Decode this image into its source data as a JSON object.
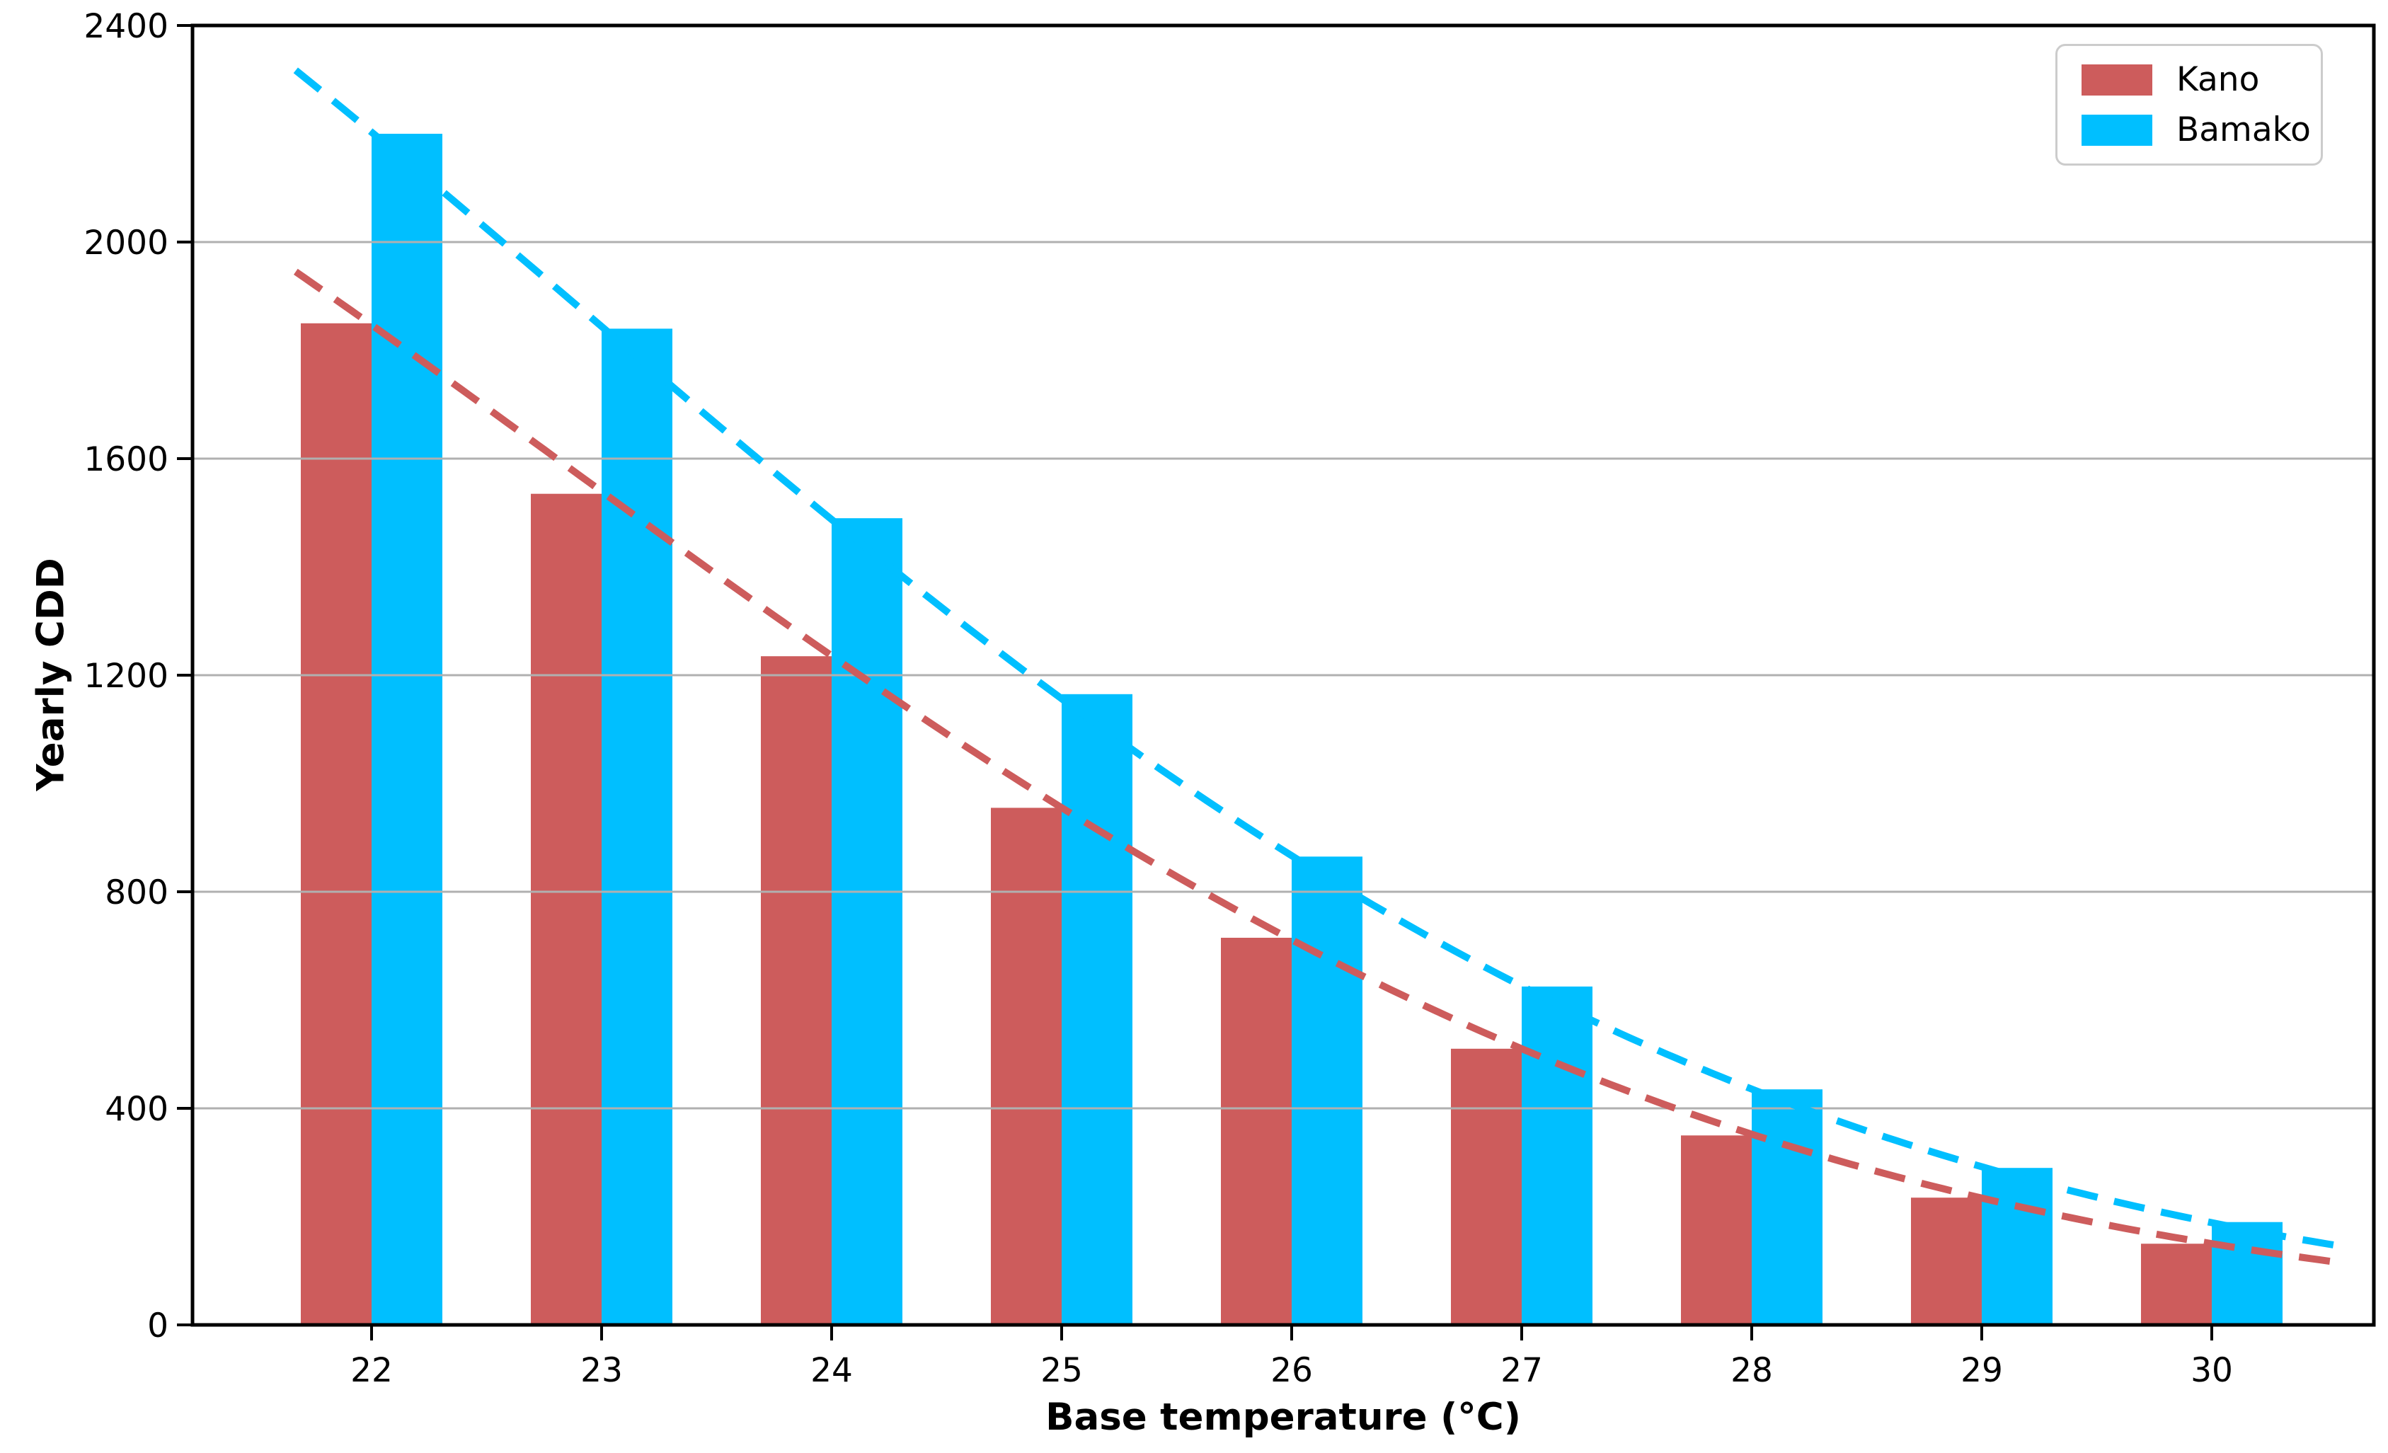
{
  "chart_data": {
    "type": "bar",
    "title": "",
    "xlabel": "Base temperature (°C)",
    "ylabel": "Yearly CDD",
    "categories": [
      22,
      23,
      24,
      25,
      26,
      27,
      28,
      29,
      30
    ],
    "series": [
      {
        "name": "Kano",
        "color": "#CD5C5C",
        "values": [
          1850,
          1535,
          1235,
          955,
          715,
          510,
          350,
          235,
          150
        ],
        "trend_line": "dashed exponential fit"
      },
      {
        "name": "Bamako",
        "color": "#00BFFF",
        "values": [
          2200,
          1840,
          1490,
          1165,
          865,
          625,
          435,
          290,
          190
        ],
        "trend_line": "dashed exponential fit"
      }
    ],
    "ylim": [
      0,
      2400
    ],
    "yticks": [
      0,
      400,
      800,
      1200,
      1600,
      2000,
      2400
    ],
    "grid": "horizontal gridlines, drawn above bars",
    "legend": {
      "position": "upper right",
      "entries": [
        "Kano",
        "Bamako"
      ]
    },
    "style": {
      "grid_color": "#b0b0b0",
      "spine_color": "#000000",
      "tick_color": "#000000",
      "text_color": "#000000",
      "background": "#ffffff"
    }
  }
}
